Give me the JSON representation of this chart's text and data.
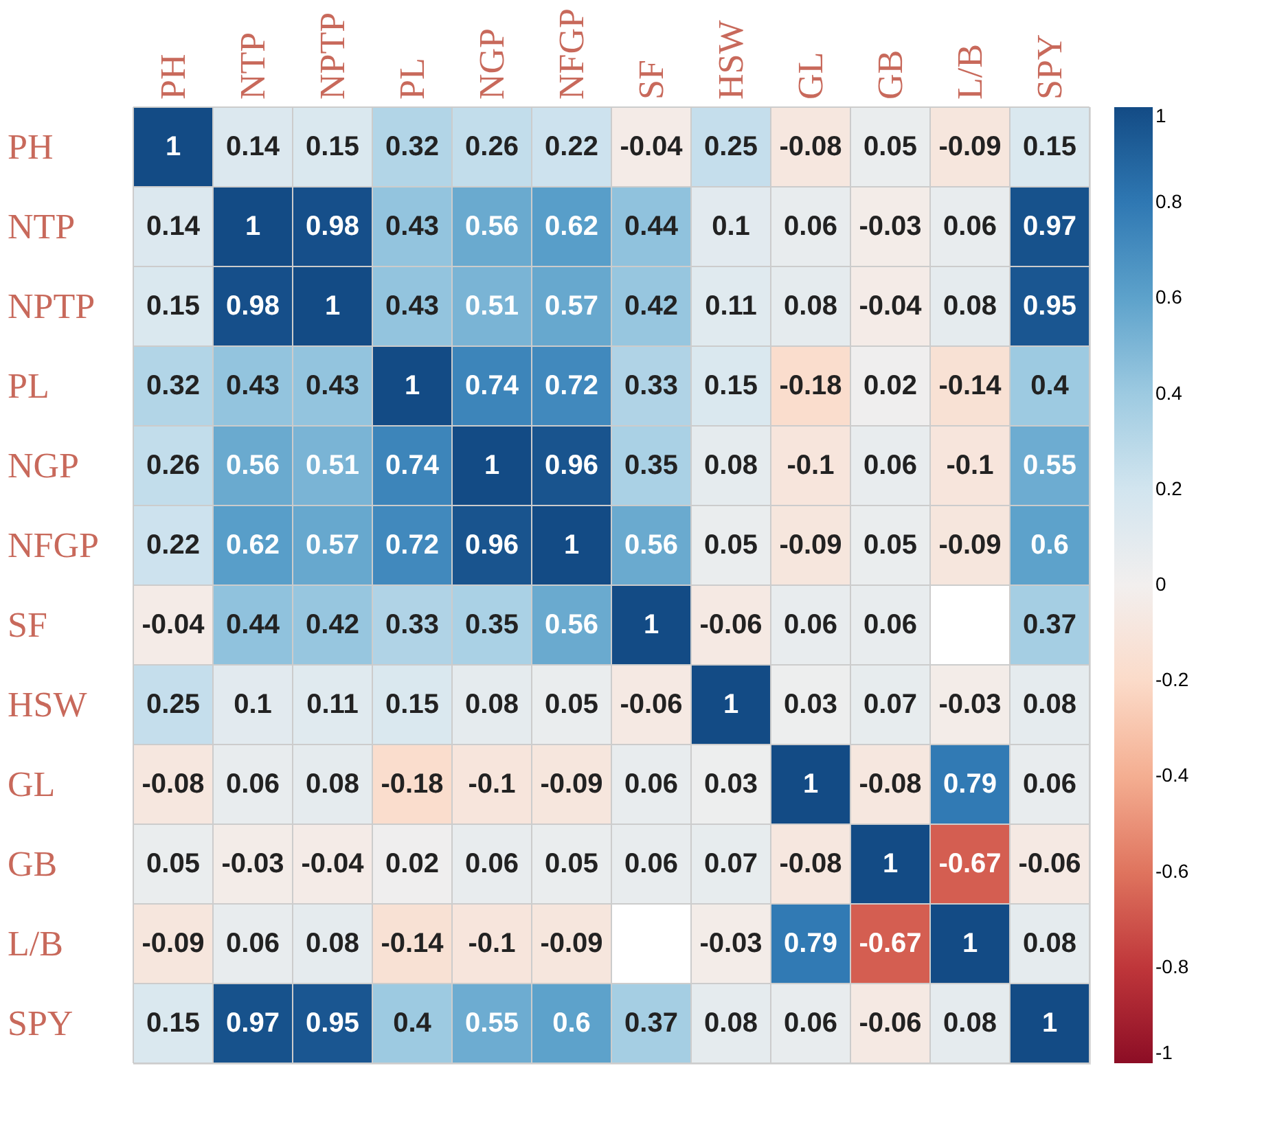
{
  "chart_data": {
    "type": "heatmap",
    "categories": [
      "PH",
      "NTP",
      "NPTP",
      "PL",
      "NGP",
      "NFGP",
      "SF",
      "HSW",
      "GL",
      "GB",
      "L/B",
      "SPY"
    ],
    "y_categories": [
      "PH",
      "NTP",
      "NPTP",
      "PL",
      "NGP",
      "NFGP",
      "SF",
      "HSW",
      "GL",
      "GB",
      "L/B",
      "SPY"
    ],
    "cells": [
      [
        1,
        0.14,
        0.15,
        0.32,
        0.26,
        0.22,
        -0.04,
        0.25,
        -0.08,
        0.05,
        -0.09,
        0.15
      ],
      [
        0.14,
        1,
        0.98,
        0.43,
        0.56,
        0.62,
        0.44,
        0.1,
        0.06,
        -0.03,
        0.06,
        0.97
      ],
      [
        0.15,
        0.98,
        1,
        0.43,
        0.51,
        0.57,
        0.42,
        0.11,
        0.08,
        -0.04,
        0.08,
        0.95
      ],
      [
        0.32,
        0.43,
        0.43,
        1,
        0.74,
        0.72,
        0.33,
        0.15,
        -0.18,
        0.02,
        -0.14,
        0.4
      ],
      [
        0.26,
        0.56,
        0.51,
        0.74,
        1,
        0.96,
        0.35,
        0.08,
        -0.1,
        0.06,
        -0.1,
        0.55
      ],
      [
        0.22,
        0.62,
        0.57,
        0.72,
        0.96,
        1,
        0.56,
        0.05,
        -0.09,
        0.05,
        -0.09,
        0.6
      ],
      [
        -0.04,
        0.44,
        0.42,
        0.33,
        0.35,
        0.56,
        1,
        -0.06,
        0.06,
        0.06,
        null,
        0.37
      ],
      [
        0.25,
        0.1,
        0.11,
        0.15,
        0.08,
        0.05,
        -0.06,
        1,
        0.03,
        0.07,
        -0.03,
        0.08
      ],
      [
        -0.08,
        0.06,
        0.08,
        -0.18,
        -0.1,
        -0.09,
        0.06,
        0.03,
        1,
        -0.08,
        0.79,
        0.06
      ],
      [
        0.05,
        -0.03,
        -0.04,
        0.02,
        0.06,
        0.05,
        0.06,
        0.07,
        -0.08,
        1,
        -0.67,
        -0.06
      ],
      [
        -0.09,
        0.06,
        0.08,
        -0.14,
        -0.1,
        -0.09,
        null,
        -0.03,
        0.79,
        -0.67,
        1,
        0.08
      ],
      [
        0.15,
        0.97,
        0.95,
        0.4,
        0.55,
        0.6,
        0.37,
        0.08,
        0.06,
        -0.06,
        0.08,
        1
      ]
    ],
    "clim": [
      -1,
      1
    ],
    "cticks": [
      -1,
      -0.8,
      -0.6,
      -0.4,
      -0.2,
      0,
      0.2,
      0.4,
      0.6,
      0.8,
      1
    ],
    "data_labels": true
  }
}
